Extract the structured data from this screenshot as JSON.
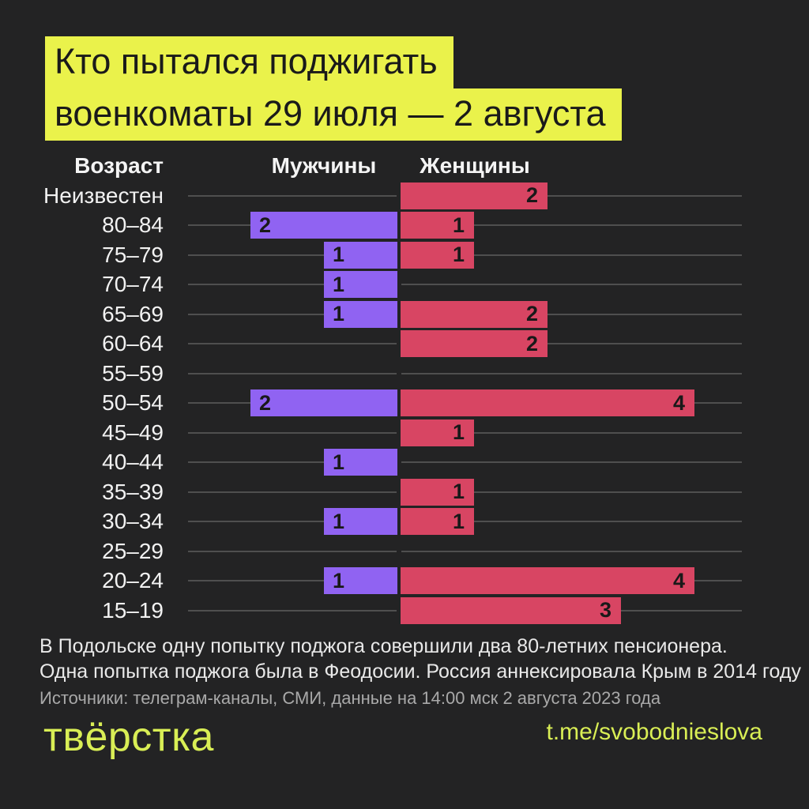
{
  "title": {
    "line1": "Кто пытался поджигать",
    "line2": "военкоматы 29 июля — 2 августа"
  },
  "chart_data": {
    "type": "bar",
    "orientation": "diverging-horizontal",
    "title": "Кто пытался поджигать военкоматы 29 июля — 2 августа",
    "column_headers": {
      "age": "Возраст",
      "men": "Мужчины",
      "women": "Женщины"
    },
    "categories": [
      "Неизвестен",
      "80–84",
      "75–79",
      "70–74",
      "65–69",
      "60–64",
      "55–59",
      "50–54",
      "45–49",
      "40–44",
      "35–39",
      "30–34",
      "25–29",
      "20–24",
      "15–19"
    ],
    "series": [
      {
        "name": "Мужчины",
        "color": "#9063f2",
        "direction": "left",
        "values": [
          0,
          2,
          1,
          1,
          1,
          0,
          0,
          2,
          0,
          1,
          0,
          1,
          0,
          1,
          0
        ]
      },
      {
        "name": "Женщины",
        "color": "#d84563",
        "direction": "right",
        "values": [
          2,
          1,
          1,
          0,
          2,
          2,
          0,
          4,
          1,
          0,
          1,
          1,
          0,
          4,
          3
        ]
      }
    ],
    "xmax": 4,
    "grid": true,
    "value_labels": "inside-bar"
  },
  "footnote": {
    "line1": "В Подольске одну попытку поджога совершили два 80-летних пенсионера.",
    "line2": "Одна попытка поджога была в Феодосии. Россия аннексировала Крым в 2014 году",
    "sources": "Источники: телеграм-каналы, СМИ, данные на 14:00 мск 2 августа 2023 года"
  },
  "footer": {
    "logo_text": "твёрстка",
    "link": "t.me/svobodnieslova"
  },
  "colors": {
    "background": "#232324",
    "title_highlight": "#eaf24b",
    "title_text": "#1a1a1a",
    "men_bar": "#9063f2",
    "women_bar": "#d84563",
    "gridline": "#4f4f4f",
    "label_text": "#f2f2f2",
    "note_text": "#e9e9e9",
    "sources_text": "#a9a9a9",
    "brand_yellow": "#d9ee55"
  }
}
